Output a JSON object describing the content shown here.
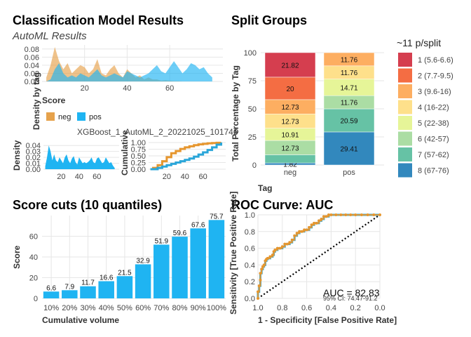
{
  "title": "Classification Model Results",
  "subtitle": "AutoML Results",
  "colors": {
    "neg": "#e6a24c",
    "pos": "#1fb4f2",
    "bar": "#1fb4f2",
    "roc_line": "#e6962e",
    "roc_pts": "#2aa6d9"
  },
  "chart_data": [
    {
      "id": "density-top",
      "type": "area",
      "xlabel": "Score",
      "ylabel": "Density by tag",
      "xticks": [
        20,
        40,
        60
      ],
      "yticks": [
        "0.00",
        "0.02",
        "0.04",
        "0.06",
        "0.08"
      ],
      "xlim": [
        0,
        85
      ],
      "ylim": [
        0,
        0.09
      ],
      "legend": {
        "labels": [
          "neg",
          "pos"
        ],
        "position": "bottom"
      },
      "series": [
        {
          "name": "neg",
          "x": [
            2,
            4,
            6,
            8,
            10,
            12,
            14,
            16,
            18,
            20,
            22,
            24,
            26,
            28,
            30,
            32,
            34,
            36,
            38,
            40,
            42,
            44,
            46,
            48,
            50,
            52,
            54,
            56,
            58,
            60,
            62,
            64,
            66,
            68,
            70,
            72,
            74,
            76,
            78,
            80
          ],
          "values": [
            0.01,
            0.04,
            0.085,
            0.05,
            0.03,
            0.045,
            0.02,
            0.03,
            0.04,
            0.035,
            0.02,
            0.03,
            0.055,
            0.02,
            0.015,
            0.03,
            0.04,
            0.02,
            0.01,
            0.03,
            0.02,
            0.01,
            0.015,
            0.005,
            0.01,
            0.005,
            0.005,
            0.002,
            0.003,
            0.002,
            0.001,
            0.001,
            0.0,
            0.0,
            0.0,
            0.0,
            0.0,
            0.0,
            0.0,
            0.0
          ]
        },
        {
          "name": "pos",
          "x": [
            2,
            4,
            6,
            8,
            10,
            12,
            14,
            16,
            18,
            20,
            22,
            24,
            26,
            28,
            30,
            32,
            34,
            36,
            38,
            40,
            42,
            44,
            46,
            48,
            50,
            52,
            54,
            56,
            58,
            60,
            62,
            64,
            66,
            68,
            70,
            72,
            74,
            76,
            78,
            80
          ],
          "values": [
            0.0,
            0.005,
            0.03,
            0.045,
            0.02,
            0.01,
            0.015,
            0.01,
            0.02,
            0.015,
            0.01,
            0.02,
            0.03,
            0.015,
            0.01,
            0.015,
            0.02,
            0.015,
            0.01,
            0.025,
            0.02,
            0.015,
            0.01,
            0.015,
            0.02,
            0.03,
            0.04,
            0.025,
            0.02,
            0.035,
            0.05,
            0.035,
            0.02,
            0.03,
            0.045,
            0.04,
            0.03,
            0.035,
            0.02,
            0.01
          ]
        }
      ]
    },
    {
      "id": "density-small",
      "type": "area",
      "ylabel": "Density",
      "xticks": [
        20,
        40,
        60
      ],
      "yticks": [
        "0.00",
        "0.01",
        "0.02",
        "0.03",
        "0.04"
      ],
      "xlim": [
        0,
        85
      ],
      "ylim": [
        0,
        0.045
      ],
      "x": [
        2,
        4,
        6,
        8,
        10,
        12,
        14,
        16,
        18,
        20,
        22,
        24,
        26,
        28,
        30,
        32,
        34,
        36,
        38,
        40,
        42,
        44,
        46,
        48,
        50,
        52,
        54,
        56,
        58,
        60,
        62,
        64,
        66,
        68,
        70,
        72,
        74,
        76,
        78,
        80
      ],
      "values": [
        0.005,
        0.02,
        0.04,
        0.03,
        0.015,
        0.025,
        0.015,
        0.012,
        0.02,
        0.015,
        0.01,
        0.02,
        0.025,
        0.015,
        0.01,
        0.018,
        0.022,
        0.012,
        0.008,
        0.02,
        0.015,
        0.01,
        0.012,
        0.01,
        0.012,
        0.015,
        0.02,
        0.012,
        0.01,
        0.018,
        0.02,
        0.015,
        0.01,
        0.012,
        0.02,
        0.015,
        0.01,
        0.012,
        0.006,
        0.002
      ]
    },
    {
      "id": "cumulative",
      "type": "line",
      "label": "XGBoost_1_AutoML_2_20221025_101746",
      "ylabel": "Cumulative",
      "xticks": [
        20,
        40,
        60
      ],
      "yticks": [
        "0.00",
        "0.25",
        "0.50",
        "0.75",
        "1.00"
      ],
      "xlim": [
        0,
        85
      ],
      "ylim": [
        0,
        1
      ],
      "series": [
        {
          "name": "neg",
          "x": [
            5,
            10,
            15,
            20,
            25,
            30,
            35,
            40,
            45,
            50,
            55,
            60,
            65,
            70,
            75,
            80
          ],
          "values": [
            0.05,
            0.15,
            0.3,
            0.45,
            0.6,
            0.68,
            0.76,
            0.82,
            0.86,
            0.9,
            0.93,
            0.95,
            0.97,
            0.98,
            0.99,
            1.0
          ]
        },
        {
          "name": "pos",
          "x": [
            5,
            10,
            15,
            20,
            25,
            30,
            35,
            40,
            45,
            50,
            55,
            60,
            65,
            70,
            75,
            80
          ],
          "values": [
            0.0,
            0.05,
            0.1,
            0.15,
            0.2,
            0.25,
            0.3,
            0.35,
            0.4,
            0.47,
            0.55,
            0.63,
            0.72,
            0.82,
            0.92,
            1.0
          ]
        }
      ]
    },
    {
      "id": "split-groups",
      "type": "bar",
      "title": "Split Groups",
      "xlabel": "Tag",
      "ylabel": "Total Percentage by Tag",
      "categories": [
        "neg",
        "pos"
      ],
      "yticks": [
        0,
        25,
        50,
        75,
        100
      ],
      "ylim": [
        0,
        100
      ],
      "legend": {
        "title": "~11 p/split",
        "position": "right",
        "items": [
          {
            "label": "1 (5.6-6.6)",
            "color": "#d53e4f"
          },
          {
            "label": "2 (7.7-9.5)",
            "color": "#f46d43"
          },
          {
            "label": "3 (9.6-16)",
            "color": "#fdae61"
          },
          {
            "label": "4 (16-22)",
            "color": "#fee08b"
          },
          {
            "label": "5 (22-38)",
            "color": "#e6f598"
          },
          {
            "label": "6 (42-57)",
            "color": "#abdda4"
          },
          {
            "label": "7 (57-62)",
            "color": "#66c2a5"
          },
          {
            "label": "8 (67-76)",
            "color": "#3288bd"
          }
        ]
      },
      "series": [
        {
          "name": "1 (5.6-6.6)",
          "values": [
            21.82,
            0
          ]
        },
        {
          "name": "2 (7.7-9.5)",
          "values": [
            20,
            0
          ]
        },
        {
          "name": "3 (9.6-16)",
          "values": [
            12.73,
            11.76
          ]
        },
        {
          "name": "4 (16-22)",
          "values": [
            12.73,
            11.76
          ]
        },
        {
          "name": "5 (22-38)",
          "values": [
            10.91,
            14.71
          ]
        },
        {
          "name": "6 (42-57)",
          "values": [
            12.73,
            11.76
          ]
        },
        {
          "name": "7 (57-62)",
          "values": [
            7.27,
            20.59
          ]
        },
        {
          "name": "8 (67-76)",
          "values": [
            1.82,
            29.41
          ]
        }
      ],
      "labels": [
        [
          "21.82",
          ""
        ],
        [
          "20",
          ""
        ],
        [
          "12.73",
          "11.76"
        ],
        [
          "12.73",
          "11.76"
        ],
        [
          "10.91",
          "14.71"
        ],
        [
          "12.73",
          "11.76"
        ],
        [
          "",
          "20.59"
        ],
        [
          "1.82",
          "29.41"
        ]
      ]
    },
    {
      "id": "score-cuts",
      "type": "bar",
      "title": "Score cuts (10 quantiles)",
      "xlabel": "Cumulative volume",
      "ylabel": "Score",
      "categories": [
        "10%",
        "20%",
        "30%",
        "40%",
        "50%",
        "60%",
        "70%",
        "80%",
        "90%",
        "100%"
      ],
      "values": [
        6.6,
        7.9,
        11.7,
        16.6,
        21.5,
        32.9,
        51.9,
        59.6,
        67.6,
        75.7
      ],
      "yticks": [
        0,
        20,
        40,
        60
      ],
      "ylim": [
        0,
        80
      ]
    },
    {
      "id": "roc",
      "type": "line",
      "title": "ROC Curve: AUC",
      "xlabel": "1 - Specificity [False Positive Rate]",
      "ylabel": "Sensitivity [True Positive Rate]",
      "xticks": [
        "1.0",
        "0.8",
        "0.6",
        "0.4",
        "0.2",
        "0.0"
      ],
      "yticks": [
        "0.0",
        "0.2",
        "0.4",
        "0.6",
        "0.8",
        "1.0"
      ],
      "xlim": [
        1,
        0
      ],
      "ylim": [
        0,
        1
      ],
      "auc_text": "AUC = 82.83",
      "ci_text": "95% CI: 74.47-91.2",
      "x": [
        1.0,
        1.0,
        0.99,
        0.98,
        0.98,
        0.97,
        0.96,
        0.95,
        0.94,
        0.93,
        0.92,
        0.9,
        0.88,
        0.87,
        0.86,
        0.84,
        0.82,
        0.8,
        0.78,
        0.76,
        0.74,
        0.72,
        0.7,
        0.68,
        0.66,
        0.64,
        0.62,
        0.6,
        0.58,
        0.56,
        0.54,
        0.52,
        0.5,
        0.48,
        0.46,
        0.44,
        0.42,
        0.4,
        0.36,
        0.32,
        0.28,
        0.24,
        0.2,
        0.15,
        0.1,
        0.05,
        0.0
      ],
      "y": [
        0.0,
        0.08,
        0.15,
        0.22,
        0.3,
        0.35,
        0.38,
        0.4,
        0.45,
        0.47,
        0.48,
        0.5,
        0.52,
        0.56,
        0.58,
        0.6,
        0.6,
        0.62,
        0.65,
        0.65,
        0.67,
        0.7,
        0.75,
        0.78,
        0.8,
        0.8,
        0.82,
        0.82,
        0.85,
        0.88,
        0.9,
        0.9,
        0.93,
        0.95,
        0.98,
        0.98,
        1.0,
        1.0,
        1.0,
        1.0,
        1.0,
        1.0,
        1.0,
        1.0,
        1.0,
        1.0,
        1.0
      ]
    }
  ]
}
